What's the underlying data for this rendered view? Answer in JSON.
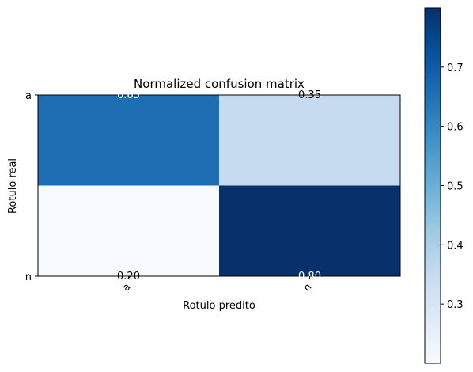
{
  "chart_data": {
    "type": "heatmap",
    "title": "Normalized confusion matrix",
    "xlabel": "Rotulo predito",
    "ylabel": "Rotulo real",
    "x_categories": [
      "a",
      "n"
    ],
    "y_categories": [
      "a",
      "n"
    ],
    "values": [
      [
        0.65,
        0.35
      ],
      [
        0.2,
        0.8
      ]
    ],
    "cell_labels": [
      [
        "0.65",
        "0.35"
      ],
      [
        "0.20",
        "0.80"
      ]
    ],
    "cell_colors": [
      [
        "#1f6eb3",
        "#c6dbef"
      ],
      [
        "#f7fbff",
        "#08306b"
      ]
    ],
    "colormap": "Blues",
    "colorbar": {
      "range": [
        0.2,
        0.8
      ],
      "ticks": [
        0.3,
        0.4,
        0.5,
        0.6,
        0.7
      ],
      "tick_labels": [
        "0.3",
        "0.4",
        "0.5",
        "0.6",
        "0.7"
      ]
    },
    "grid": false
  }
}
